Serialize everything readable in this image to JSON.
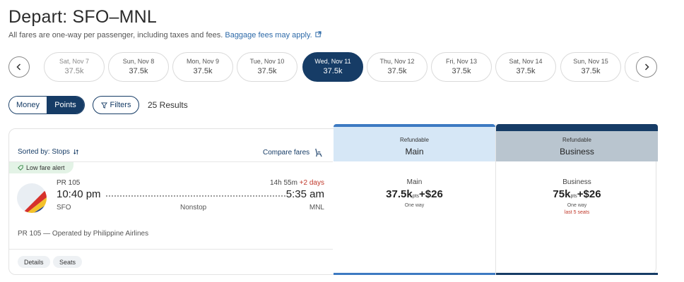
{
  "page": {
    "title": "Depart: SFO–MNL",
    "subtitle": "All fares are one-way per passenger, including taxes and fees.",
    "baggage_link": "Baggage fees may apply.",
    "baggage_icon": "external-link-icon"
  },
  "date_bar": {
    "prev_icon": "chevron-left-icon",
    "next_icon": "chevron-right-icon",
    "dates": [
      {
        "label": "Sat, Nov 7",
        "price": "37.5k"
      },
      {
        "label": "Sun, Nov 8",
        "price": "37.5k"
      },
      {
        "label": "Mon, Nov 9",
        "price": "37.5k"
      },
      {
        "label": "Tue, Nov 10",
        "price": "37.5k"
      },
      {
        "label": "Wed, Nov 11",
        "price": "37.5k"
      },
      {
        "label": "Thu, Nov 12",
        "price": "37.5k"
      },
      {
        "label": "Fri, Nov 13",
        "price": "37.5k"
      },
      {
        "label": "Sat, Nov 14",
        "price": "37.5k"
      },
      {
        "label": "Sun, Nov 15",
        "price": "37.5k"
      }
    ]
  },
  "toolbar": {
    "money_label": "Money",
    "points_label": "Points",
    "filters_label": "Filters",
    "results_count": "25 Results"
  },
  "results": {
    "sorted_by": "Sorted by: Stops",
    "compare": "Compare fares",
    "columns": [
      {
        "refundable": "Refundable",
        "name": "Main"
      },
      {
        "refundable": "Refundable",
        "name": "Business"
      }
    ]
  },
  "flight": {
    "badge": "Low fare alert",
    "flight_number": "PR 105",
    "depart_time": "10:40 pm",
    "arrive_time": "5:35 am",
    "duration": "14h 55m",
    "plus_days": "+2 days",
    "origin": "SFO",
    "stops": "Nonstop",
    "destination": "MNL",
    "operated_by": "PR 105 — Operated by Philippine Airlines",
    "details_label": "Details",
    "seats_label": "Seats",
    "fares": {
      "main": {
        "name": "Main",
        "points": "37.5k",
        "pts_unit": "pts",
        "cash": "+$26",
        "note": "One way"
      },
      "business": {
        "name": "Business",
        "points": "75k",
        "pts_unit": "pts",
        "cash": "+$26",
        "note": "One way",
        "warning": "last 5 seats"
      }
    }
  },
  "colors": {
    "navy": "#163c66",
    "main_accent": "#3d7ac2",
    "main_header_bg": "#d6e7f6",
    "business_header_bg": "#b9c5cf",
    "alert_red": "#c0392b",
    "badge_green": "#e3f3e6"
  }
}
